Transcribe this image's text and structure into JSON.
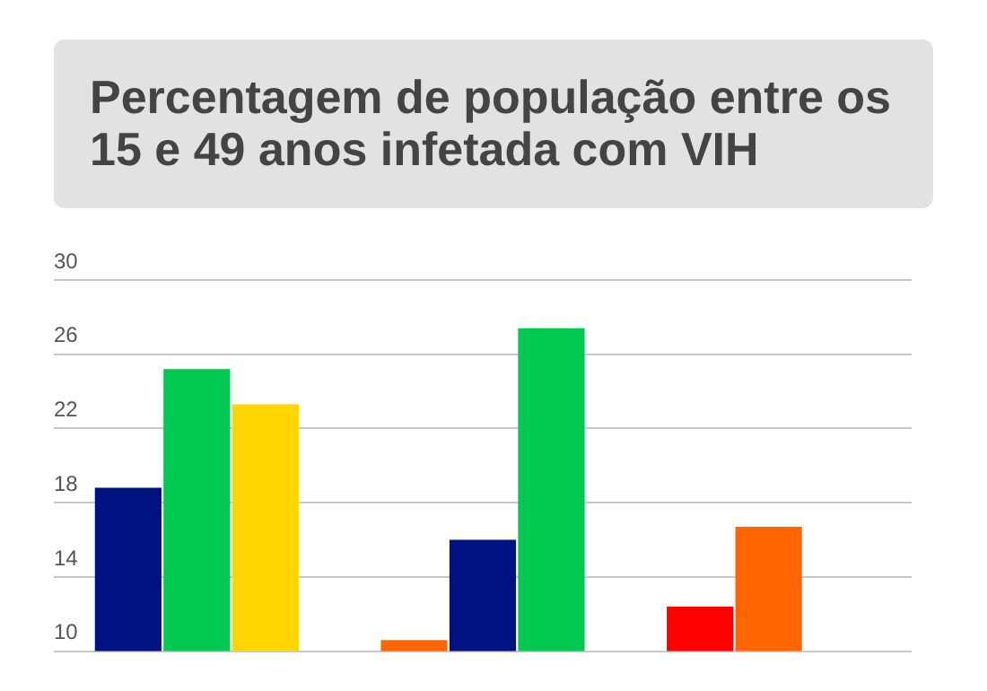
{
  "chart_data": {
    "type": "bar",
    "title": "Percentagem de população entre os 15 e 49 anos infetada com VIH",
    "categories": [
      null,
      null,
      null
    ],
    "series": [
      {
        "colors": [
          "#001180",
          "#ff6600",
          "#ff0000"
        ],
        "values": [
          18.8,
          10.6,
          12.4
        ]
      },
      {
        "colors": [
          "#00c850",
          "#001180",
          "#ff6600"
        ],
        "values": [
          25.2,
          16.0,
          16.7
        ]
      },
      {
        "colors": [
          "#ffd600",
          "#00c850",
          null
        ],
        "values": [
          23.3,
          27.4,
          null
        ]
      }
    ],
    "ylim": [
      10,
      30
    ],
    "yticks": [
      10,
      14,
      18,
      22,
      26,
      30
    ],
    "grid": "y",
    "tick_labels": "y",
    "legend": false
  }
}
